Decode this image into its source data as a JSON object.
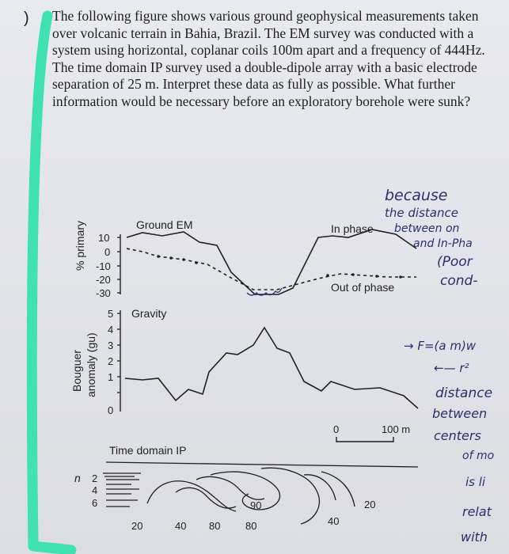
{
  "question": {
    "marker": ")",
    "text": "The following figure shows various ground geophysical measurements taken over volcanic terrain in Bahia, Brazil. The EM survey was conducted with a system using horizontal, coplanar coils 100m apart and a frequency of 444Hz. The time domain IP survey used a double-dipole array with a basic electrode separation of 25 m. Interpret these data as fully as possible. What further information would be necessary before an exploratory borehole were sunk?"
  },
  "figure": {
    "em_panel": {
      "title": "Ground EM",
      "ylabel": "% primary",
      "ticks": [
        "10",
        "0",
        "-10",
        "-20",
        "-30"
      ],
      "in_phase_label": "In phase",
      "out_phase_label": "Out of phase"
    },
    "gravity_panel": {
      "title": "Gravity",
      "ylabel_line1": "Bouguer",
      "ylabel_line2": "anomaly (gu)",
      "ticks": [
        "5",
        "4",
        "3",
        "2",
        "1",
        "0"
      ]
    },
    "scale_bar": {
      "zero": "0",
      "length": "100 m"
    },
    "ip_panel": {
      "title": "Time domain IP",
      "n_label": "n",
      "n_ticks": [
        "2",
        "4",
        "6"
      ],
      "contour_labels": [
        "20",
        "40",
        "80",
        "80",
        "90",
        "40",
        "20"
      ]
    }
  },
  "handwriting": {
    "lines": [
      "because",
      "the distance",
      "between on",
      "and In-Pha",
      "(Poor",
      "cond-"
    ],
    "formula": "→ F=(a m)w",
    "formula2": "←— r²",
    "lines2": [
      "distance",
      "between",
      "centers",
      "of mo",
      "is li",
      "relat",
      "with"
    ]
  },
  "colors": {
    "highlight": "#3fe2b0",
    "ink": "#2b2f6b",
    "print": "#1f1f24"
  }
}
